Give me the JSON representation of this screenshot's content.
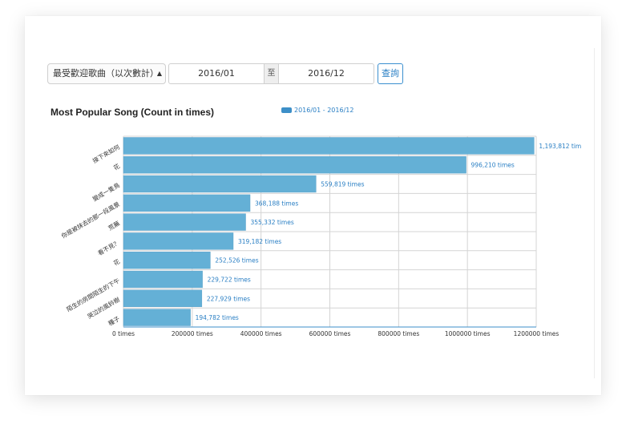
{
  "filter": {
    "select_label": "最受歡迎歌曲（以次數計）",
    "date_from": "2016/01",
    "range_sep": "至",
    "date_to": "2016/12",
    "query_label": "查詢"
  },
  "chart_data": {
    "type": "bar",
    "orientation": "horizontal",
    "title": "Most Popular Song (Count in times)",
    "legend_position": "top-center",
    "grid": true,
    "categories": [
      "接下來如何",
      "花",
      "變成一隻鳥",
      "你是被抹去的那一段風景",
      "荒蕪",
      "看不見？",
      "花",
      "陌生的房間陌生的下午",
      "哭泣的風鈴樹",
      "種子"
    ],
    "series": [
      {
        "name": "2016/01 - 2016/12",
        "color": "#64b0d6",
        "values": [
          1193812,
          996210,
          559819,
          368188,
          355332,
          319182,
          252526,
          229722,
          227929,
          194782
        ],
        "value_labels": [
          "1,193,812 tim",
          "996,210 times",
          "559,819 times",
          "368,188 times",
          "355,332 times",
          "319,182 times",
          "252,526 times",
          "229,722 times",
          "227,929 times",
          "194,782 times"
        ]
      }
    ],
    "xlim": [
      0,
      1200000
    ],
    "x_ticks": [
      0,
      200000,
      400000,
      600000,
      800000,
      1000000,
      1200000
    ],
    "x_tick_labels": [
      "0 times",
      "200000 times",
      "400000 times",
      "600000 times",
      "800000 times",
      "1000000 times",
      "1200000 times"
    ],
    "label_color": "#2a7fc4"
  }
}
